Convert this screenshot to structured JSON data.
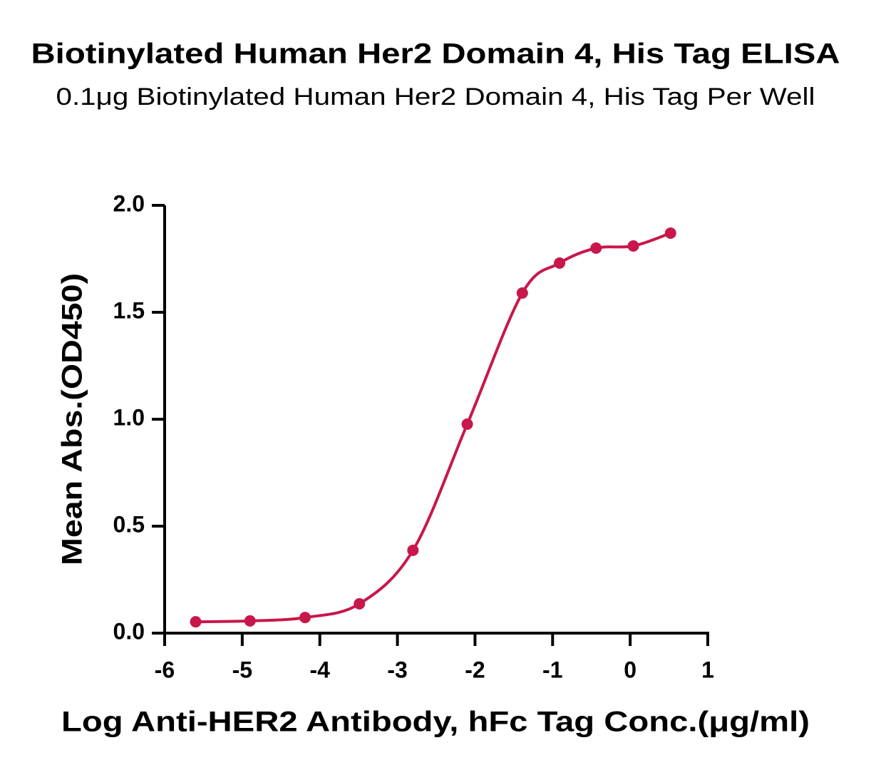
{
  "chart_data": {
    "type": "scatter",
    "title": "Biotinylated Human Her2 Domain 4, His Tag ELISA",
    "subtitle": "0.1μg Biotinylated Human Her2 Domain 4, His Tag Per Well",
    "x_label": "Log Anti-HER2 Antibody, hFc Tag Conc.(μg/ml)",
    "y_label": "Mean Abs.(OD450)",
    "series": [
      {
        "color": "#c8174a",
        "x": [
          -5.6,
          -4.9,
          -4.19,
          -3.49,
          -2.8,
          -2.1,
          -1.39,
          -0.91,
          -0.44,
          0.04,
          0.52
        ],
        "values": [
          0.053,
          0.057,
          0.073,
          0.137,
          0.387,
          0.977,
          1.59,
          1.73,
          1.8,
          1.81,
          1.87
        ]
      }
    ],
    "xlim": [
      -6,
      1
    ],
    "xticks": [
      -6,
      -5,
      -4,
      -3,
      -2,
      -1,
      0,
      1
    ],
    "ylim": [
      0,
      2
    ],
    "yticks": [
      {
        "value": 0,
        "label": "0.0"
      },
      0.5,
      {
        "value": 1,
        "label": "1.0"
      },
      1.5,
      {
        "value": 2,
        "label": "2.0"
      }
    ]
  }
}
